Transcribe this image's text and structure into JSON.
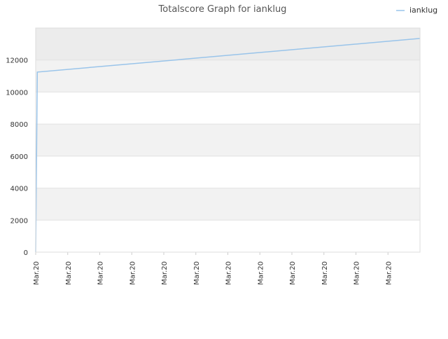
{
  "chart_data": {
    "type": "line",
    "title": "Totalscore Graph for ianklug",
    "xlabel": "",
    "ylabel": "",
    "x_tick_labels": [
      "Mar.20",
      "Mar.20",
      "Mar.20",
      "Mar.20",
      "Mar.20",
      "Mar.20",
      "Mar.20",
      "Mar.20",
      "Mar.20",
      "Mar.20",
      "Mar.20",
      "Mar.20"
    ],
    "y_ticks": [
      0,
      2000,
      4000,
      6000,
      8000,
      10000,
      12000
    ],
    "ylim": [
      0,
      14000
    ],
    "grid": true,
    "legend_position": "top-right",
    "series": [
      {
        "name": "ianklug",
        "color": "#99c4ea",
        "points": [
          {
            "x": 0,
            "y": 0
          },
          {
            "x": 0.05,
            "y": 11250
          },
          {
            "x": 12,
            "y": 13350
          }
        ]
      }
    ]
  }
}
